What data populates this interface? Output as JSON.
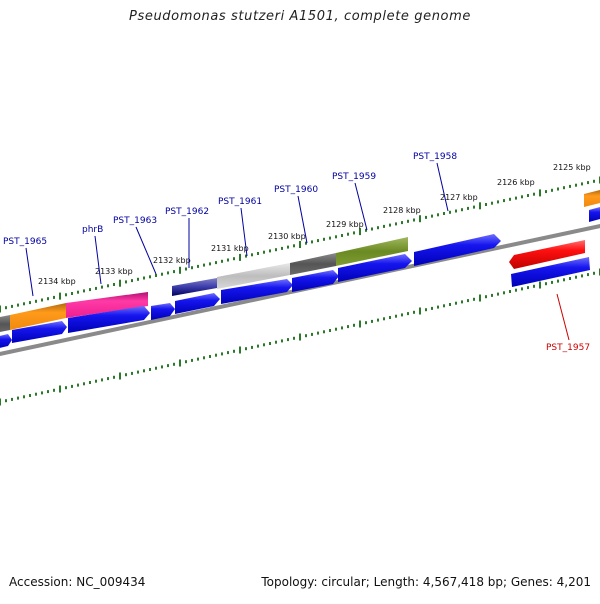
{
  "title": "Pseudomonas stutzeri A1501, complete genome",
  "footer": {
    "accession": "Accession: NC_009434",
    "topology": "Topology: circular; Length: 4,567,418 bp; Genes: 4,201"
  },
  "colors": {
    "backbone": "#888888",
    "cds_blue": "#1010e0",
    "label_blue": "#0000a0",
    "label_red": "#cc0000",
    "tick_green": "#2a7a2a"
  },
  "kbp_labels": [
    "2134 kbp",
    "2133 kbp",
    "2132 kbp",
    "2131 kbp",
    "2130 kbp",
    "2129 kbp",
    "2128 kbp",
    "2127 kbp",
    "2126 kbp",
    "2125 kbp"
  ],
  "gene_labels": [
    {
      "name": "PST_1965",
      "color": "#0000a0"
    },
    {
      "name": "phrB",
      "color": "#0000a0"
    },
    {
      "name": "PST_1963",
      "color": "#0000a0"
    },
    {
      "name": "PST_1962",
      "color": "#0000a0"
    },
    {
      "name": "PST_1961",
      "color": "#0000a0"
    },
    {
      "name": "PST_1960",
      "color": "#0000a0"
    },
    {
      "name": "PST_1959",
      "color": "#0000a0"
    },
    {
      "name": "PST_1958",
      "color": "#0000a0"
    },
    {
      "name": "PST_1957",
      "color": "#cc0000"
    }
  ]
}
